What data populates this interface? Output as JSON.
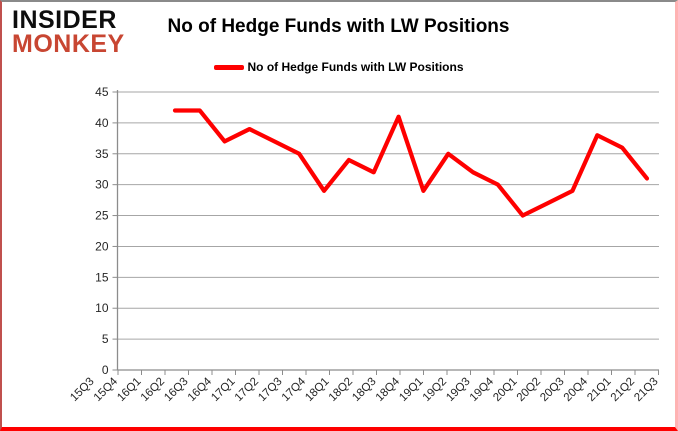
{
  "logo": {
    "line1": "INSIDER",
    "line2": "MONKEY"
  },
  "title": "No of Hedge Funds with LW Positions",
  "legend": {
    "label": "No of Hedge Funds with LW Positions",
    "swatch_color": "#fe0000"
  },
  "colors": {
    "line": "#fe0000",
    "gridline": "#a6a6a6",
    "axis": "#8c8c8c",
    "tick_label": "#262626",
    "logo_red": "#c84632",
    "frame_bottom": "#fe0000"
  },
  "chart_data": {
    "type": "line",
    "title": "No of Hedge Funds with LW Positions",
    "xlabel": "",
    "ylabel": "",
    "ylim": [
      0,
      45
    ],
    "ytick_step": 5,
    "yticks": [
      0,
      5,
      10,
      15,
      20,
      25,
      30,
      35,
      40,
      45
    ],
    "grid": true,
    "legend_position": "top-center",
    "categories": [
      "15Q3",
      "15Q4",
      "16Q1",
      "16Q2",
      "16Q3",
      "16Q4",
      "17Q1",
      "17Q2",
      "17Q3",
      "17Q4",
      "18Q1",
      "18Q2",
      "18Q3",
      "18Q4",
      "19Q1",
      "19Q2",
      "19Q3",
      "19Q4",
      "20Q1",
      "20Q2",
      "20Q3",
      "20Q4",
      "21Q1",
      "21Q2",
      "21Q3"
    ],
    "series": [
      {
        "name": "No of Hedge Funds with LW Positions",
        "color": "#fe0000",
        "first_category": "16Q4",
        "start_index": 5,
        "values": [
          42,
          42,
          37,
          39,
          37,
          35,
          29,
          34,
          32,
          41,
          29,
          35,
          32,
          30,
          25,
          27,
          29,
          38,
          36,
          31
        ]
      }
    ]
  }
}
